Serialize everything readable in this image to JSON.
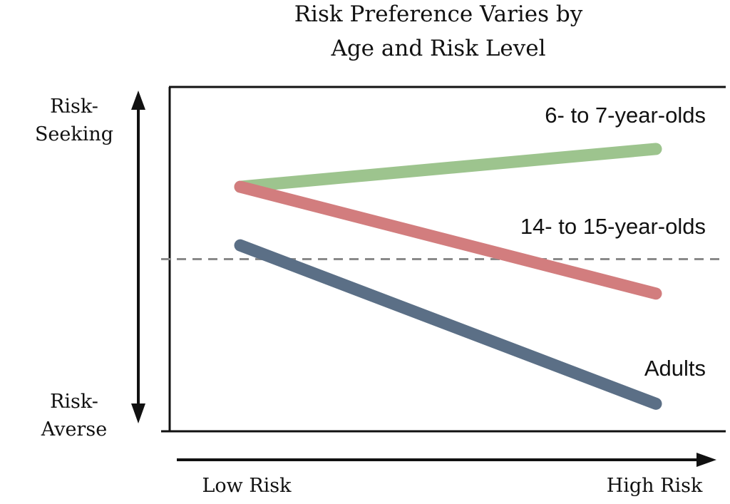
{
  "chart_data": {
    "type": "line",
    "title_lines": [
      "Risk Preference Varies by",
      "Age and Risk Level"
    ],
    "x_categories": [
      "Low Risk",
      "High Risk"
    ],
    "y_axis": {
      "top_label_lines": [
        "Risk-",
        "Seeking"
      ],
      "bottom_label_lines": [
        "Risk-",
        "Averse"
      ],
      "range": [
        0,
        1
      ],
      "neutral_reference": 0.5
    },
    "grid": false,
    "series": [
      {
        "name": "6- to 7-year-olds",
        "values": [
          0.71,
          0.82
        ],
        "color": "#9dc48e"
      },
      {
        "name": "14- to 15-year-olds",
        "values": [
          0.71,
          0.4
        ],
        "color": "#d27d7e"
      },
      {
        "name": "Adults",
        "values": [
          0.54,
          0.08
        ],
        "color": "#5b6f86"
      }
    ]
  }
}
